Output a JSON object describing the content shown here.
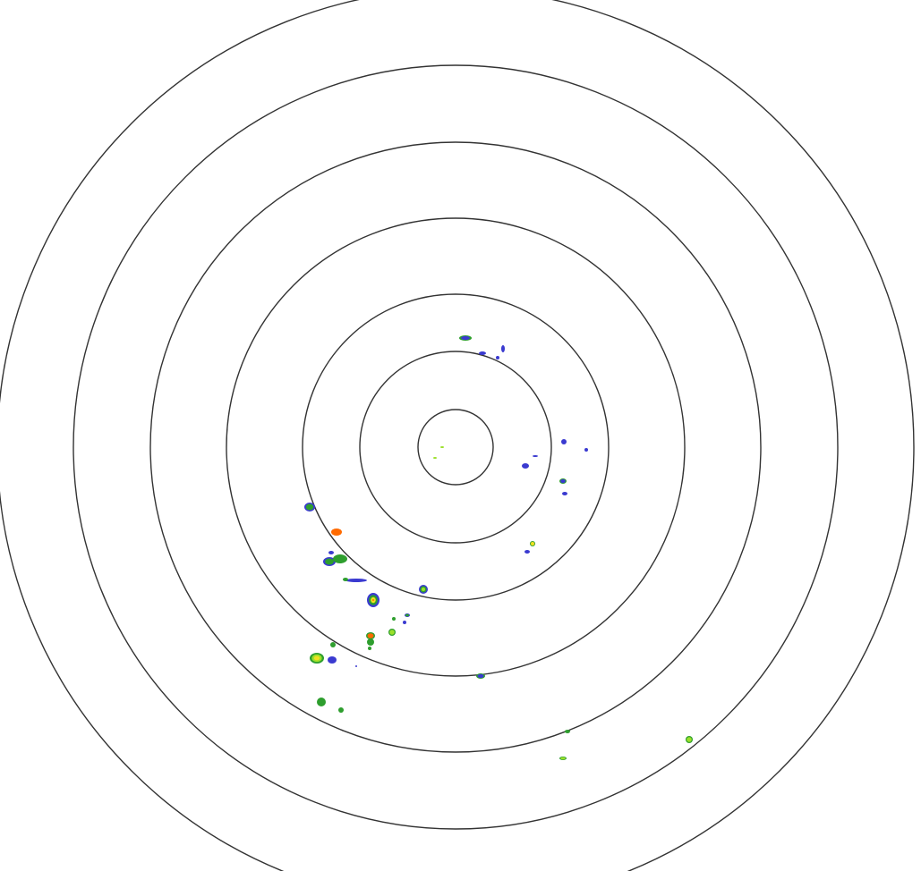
{
  "radar": {
    "ring_count": 7,
    "ring_color": "#333333",
    "background": "#ffffff",
    "echo_colors": {
      "weak": "#3a3ad0",
      "light": "#2e9e2e",
      "moderate": "#9be02a",
      "heavy": "#f0e020",
      "intense": "#ff6a00"
    }
  }
}
